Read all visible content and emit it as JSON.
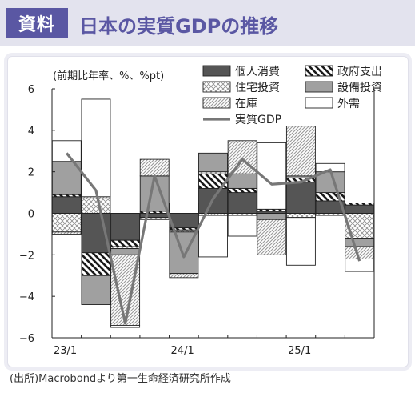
{
  "header": {
    "tag": "資料",
    "title": "日本の実質GDPの推移"
  },
  "source": "(出所)Macrobondより第一生命経済研究所作成",
  "colors": {
    "header_bg": "#e3e3ee",
    "accent": "#5a57a3",
    "personal_consumption": "#555555",
    "capex": "#a0a0a0",
    "gdp_line": "#777777"
  },
  "chart_data": {
    "type": "bar",
    "stacked": true,
    "ylabel": "(前期比年率、%、%pt)",
    "ylim": [
      -6,
      6
    ],
    "yticks": [
      6,
      4,
      2,
      0,
      -2,
      -4,
      -6
    ],
    "x_tick_labels": [
      {
        "index": 0,
        "label": "23/1"
      },
      {
        "index": 4,
        "label": "24/1"
      },
      {
        "index": 8,
        "label": "25/1"
      }
    ],
    "categories": [
      "23/1",
      "23/2",
      "23/3",
      "23/4",
      "24/1",
      "24/2",
      "24/3",
      "24/4",
      "25/1",
      "25/2",
      "25/3"
    ],
    "series": [
      {
        "name": "個人消費",
        "pattern": "solid-dark",
        "values": [
          0.8,
          -1.9,
          -1.3,
          -0.2,
          -0.7,
          1.2,
          1.0,
          0.1,
          1.5,
          0.6,
          0.4
        ]
      },
      {
        "name": "政府支出",
        "pattern": "diag-back",
        "values": [
          0.1,
          -1.1,
          -0.3,
          0.1,
          -0.1,
          0.7,
          0.2,
          0.1,
          0.2,
          0.4,
          0.1
        ]
      },
      {
        "name": "住宅投資",
        "pattern": "crosshatch",
        "values": [
          -0.9,
          0.7,
          -0.1,
          -0.1,
          -0.1,
          0.1,
          -0.1,
          0.0,
          -0.2,
          -0.1,
          -1.2
        ]
      },
      {
        "name": "設備投資",
        "pattern": "solid-mid",
        "values": [
          1.6,
          -1.4,
          -0.3,
          1.7,
          -2.0,
          0.9,
          0.7,
          -0.3,
          0.1,
          1.0,
          -0.4
        ]
      },
      {
        "name": "在庫",
        "pattern": "diag-fwd",
        "values": [
          -0.1,
          0.1,
          -3.4,
          0.8,
          -0.2,
          -0.1,
          1.6,
          -1.7,
          2.4,
          0.0,
          -0.6
        ]
      },
      {
        "name": "外需",
        "pattern": "open",
        "values": [
          1.0,
          4.7,
          -0.1,
          0.0,
          0.5,
          -2.0,
          -1.0,
          3.2,
          -2.3,
          0.4,
          -0.6
        ]
      }
    ],
    "line": {
      "name": "実質GDP",
      "values": [
        2.9,
        1.1,
        -5.3,
        1.8,
        -2.1,
        0.7,
        2.6,
        1.4,
        1.5,
        2.1,
        -2.3
      ]
    }
  }
}
